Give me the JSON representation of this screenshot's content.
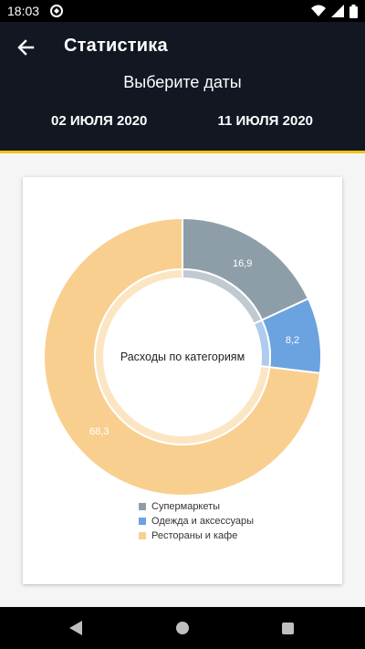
{
  "status_bar": {
    "time": "18:03"
  },
  "header": {
    "title": "Статистика",
    "subtitle": "Выберите даты",
    "date_from": "02 ИЮЛЯ 2020",
    "date_to": "11 ИЮЛЯ 2020",
    "accent_color": "#f1c40f"
  },
  "chart_data": {
    "type": "pie",
    "title": "Расходы по категориям",
    "categories": [
      "Супермаркеты",
      "Одежда и аксессуары",
      "Рестораны и кафе"
    ],
    "values": [
      16.9,
      8.2,
      68.3
    ],
    "labels": [
      "16,9",
      "8,2",
      "68,3"
    ],
    "colors": [
      "#8e9ea9",
      "#6aa3e0",
      "#f9cf90"
    ],
    "legend_position": "bottom"
  },
  "nav": {
    "back_icon": "triangle-back-icon",
    "home_icon": "circle-home-icon",
    "recents_icon": "square-recents-icon"
  }
}
